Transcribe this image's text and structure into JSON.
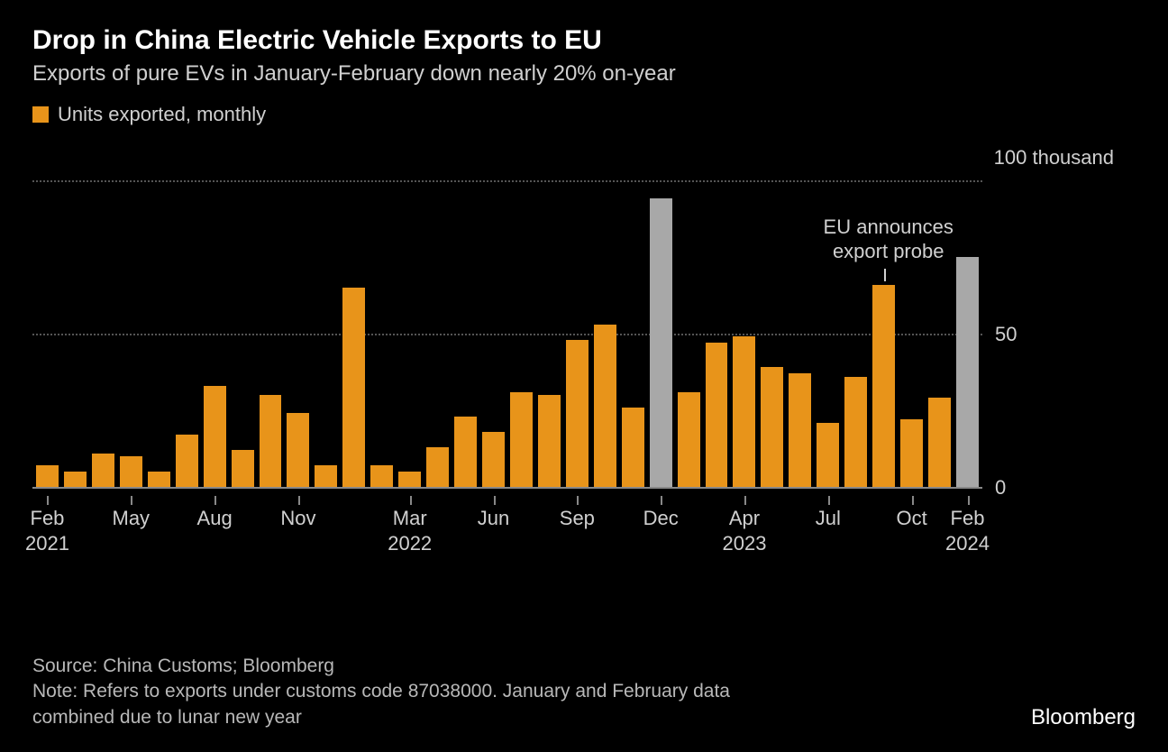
{
  "title": "Drop in China Electric Vehicle Exports to EU",
  "subtitle": "Exports of pure EVs in January-February down nearly 20% on-year",
  "legend": {
    "label": "Units exported, monthly",
    "color": "#e8941a"
  },
  "colors": {
    "background": "#000000",
    "series_primary": "#e8941a",
    "series_combined": "#a8a8a8",
    "grid": "#555555",
    "baseline": "#888888",
    "text": "#d0d0d0",
    "title": "#ffffff"
  },
  "chart": {
    "type": "bar",
    "y": {
      "min": 0,
      "max": 100,
      "ticks": [
        0,
        50,
        100
      ],
      "unit_label": "thousand"
    },
    "bars": [
      {
        "value": 7,
        "color": "#e8941a"
      },
      {
        "value": 5,
        "color": "#e8941a"
      },
      {
        "value": 11,
        "color": "#e8941a"
      },
      {
        "value": 10,
        "color": "#e8941a"
      },
      {
        "value": 5,
        "color": "#e8941a"
      },
      {
        "value": 17,
        "color": "#e8941a"
      },
      {
        "value": 33,
        "color": "#e8941a"
      },
      {
        "value": 12,
        "color": "#e8941a"
      },
      {
        "value": 30,
        "color": "#e8941a"
      },
      {
        "value": 24,
        "color": "#e8941a"
      },
      {
        "value": 7,
        "color": "#e8941a"
      },
      {
        "value": 65,
        "color": "#e8941a"
      },
      {
        "value": 7,
        "color": "#e8941a"
      },
      {
        "value": 5,
        "color": "#e8941a"
      },
      {
        "value": 13,
        "color": "#e8941a"
      },
      {
        "value": 23,
        "color": "#e8941a"
      },
      {
        "value": 18,
        "color": "#e8941a"
      },
      {
        "value": 31,
        "color": "#e8941a"
      },
      {
        "value": 30,
        "color": "#e8941a"
      },
      {
        "value": 48,
        "color": "#e8941a"
      },
      {
        "value": 53,
        "color": "#e8941a"
      },
      {
        "value": 26,
        "color": "#e8941a"
      },
      {
        "value": 94,
        "color": "#a8a8a8"
      },
      {
        "value": 31,
        "color": "#e8941a"
      },
      {
        "value": 47,
        "color": "#e8941a"
      },
      {
        "value": 49,
        "color": "#e8941a"
      },
      {
        "value": 39,
        "color": "#e8941a"
      },
      {
        "value": 37,
        "color": "#e8941a"
      },
      {
        "value": 21,
        "color": "#e8941a"
      },
      {
        "value": 36,
        "color": "#e8941a"
      },
      {
        "value": 66,
        "color": "#e8941a"
      },
      {
        "value": 22,
        "color": "#e8941a"
      },
      {
        "value": 29,
        "color": "#e8941a"
      },
      {
        "value": 75,
        "color": "#a8a8a8"
      }
    ],
    "x_ticks": [
      {
        "index": 0,
        "month": "Feb",
        "year": "2021"
      },
      {
        "index": 3,
        "month": "May"
      },
      {
        "index": 6,
        "month": "Aug"
      },
      {
        "index": 9,
        "month": "Nov"
      },
      {
        "index": 13,
        "month": "Mar",
        "year": "2022"
      },
      {
        "index": 16,
        "month": "Jun"
      },
      {
        "index": 19,
        "month": "Sep"
      },
      {
        "index": 22,
        "month": "Dec"
      },
      {
        "index": 25,
        "month": "Apr",
        "year": "2023"
      },
      {
        "index": 28,
        "month": "Jul"
      },
      {
        "index": 31,
        "month": "Oct"
      },
      {
        "index": 33,
        "month": "Feb",
        "year": "2024"
      }
    ],
    "annotation": {
      "text_line1": "EU announces",
      "text_line2": "export probe",
      "bar_index": 30
    }
  },
  "footer": {
    "source": "Source: China Customs; Bloomberg",
    "note": "Note: Refers to exports under customs code 87038000. January and February data combined due to lunar new year"
  },
  "brand": "Bloomberg"
}
